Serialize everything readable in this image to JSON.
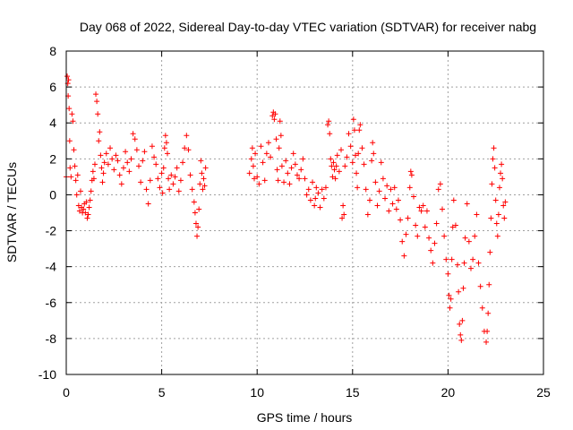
{
  "chart_data": {
    "type": "scatter",
    "title": "Day 068 of 2022, Sidereal Day-to-day VTEC variation (SDTVAR) for receiver nabg",
    "xlabel": "GPS time / hours",
    "ylabel": "SDTVAR / TECUs",
    "xlim": [
      0,
      25
    ],
    "ylim": [
      -10,
      8
    ],
    "xticks": [
      0,
      5,
      10,
      15,
      20,
      25
    ],
    "yticks": [
      -10,
      -8,
      -6,
      -4,
      -2,
      0,
      2,
      4,
      6,
      8
    ],
    "grid": true,
    "marker": "+",
    "series": [
      {
        "name": "SDTVAR",
        "color": "#ff0000",
        "points": [
          [
            0.0,
            1.0
          ],
          [
            0.05,
            6.6
          ],
          [
            0.08,
            6.2
          ],
          [
            0.1,
            5.5
          ],
          [
            0.12,
            6.4
          ],
          [
            0.15,
            4.8
          ],
          [
            0.18,
            3.0
          ],
          [
            0.2,
            1.5
          ],
          [
            0.25,
            1.0
          ],
          [
            0.3,
            4.5
          ],
          [
            0.35,
            4.1
          ],
          [
            0.4,
            2.5
          ],
          [
            0.45,
            1.6
          ],
          [
            0.5,
            0.8
          ],
          [
            0.55,
            0.0
          ],
          [
            0.6,
            1.1
          ],
          [
            0.65,
            -0.6
          ],
          [
            0.7,
            -0.9
          ],
          [
            0.75,
            0.2
          ],
          [
            0.8,
            -0.7
          ],
          [
            0.85,
            -1.0
          ],
          [
            0.9,
            -0.8
          ],
          [
            0.95,
            -0.5
          ],
          [
            1.0,
            -1.0
          ],
          [
            1.05,
            -0.4
          ],
          [
            1.1,
            -1.3
          ],
          [
            1.15,
            -1.1
          ],
          [
            1.2,
            -0.7
          ],
          [
            1.25,
            -0.3
          ],
          [
            1.3,
            0.2
          ],
          [
            1.35,
            0.8
          ],
          [
            1.4,
            1.3
          ],
          [
            1.45,
            0.9
          ],
          [
            1.5,
            1.7
          ],
          [
            1.55,
            5.6
          ],
          [
            1.6,
            5.2
          ],
          [
            1.65,
            4.5
          ],
          [
            1.7,
            3.0
          ],
          [
            1.75,
            3.5
          ],
          [
            1.8,
            2.2
          ],
          [
            1.85,
            1.5
          ],
          [
            1.9,
            0.7
          ],
          [
            1.95,
            1.2
          ],
          [
            2.0,
            1.8
          ],
          [
            2.1,
            2.3
          ],
          [
            2.2,
            1.7
          ],
          [
            2.3,
            2.6
          ],
          [
            2.4,
            2.0
          ],
          [
            2.5,
            1.4
          ],
          [
            2.6,
            2.2
          ],
          [
            2.7,
            1.9
          ],
          [
            2.8,
            1.1
          ],
          [
            2.9,
            0.6
          ],
          [
            3.0,
            1.5
          ],
          [
            3.1,
            2.4
          ],
          [
            3.2,
            1.8
          ],
          [
            3.3,
            1.3
          ],
          [
            3.4,
            2.0
          ],
          [
            3.5,
            3.4
          ],
          [
            3.6,
            3.1
          ],
          [
            3.7,
            2.5
          ],
          [
            3.8,
            1.6
          ],
          [
            3.9,
            0.7
          ],
          [
            4.0,
            1.9
          ],
          [
            4.1,
            2.4
          ],
          [
            4.2,
            0.3
          ],
          [
            4.3,
            -0.5
          ],
          [
            4.4,
            0.8
          ],
          [
            4.5,
            2.7
          ],
          [
            4.6,
            2.1
          ],
          [
            4.7,
            1.7
          ],
          [
            4.8,
            0.9
          ],
          [
            4.9,
            0.4
          ],
          [
            5.0,
            1.2
          ],
          [
            5.05,
            0.1
          ],
          [
            5.1,
            1.5
          ],
          [
            5.15,
            2.6
          ],
          [
            5.2,
            3.3
          ],
          [
            5.25,
            2.9
          ],
          [
            5.3,
            2.3
          ],
          [
            5.35,
            0.9
          ],
          [
            5.4,
            0.3
          ],
          [
            5.5,
            1.1
          ],
          [
            5.6,
            0.6
          ],
          [
            5.7,
            1.0
          ],
          [
            5.8,
            1.5
          ],
          [
            5.9,
            0.2
          ],
          [
            6.0,
            0.8
          ],
          [
            6.1,
            1.8
          ],
          [
            6.2,
            2.6
          ],
          [
            6.3,
            3.3
          ],
          [
            6.4,
            2.5
          ],
          [
            6.5,
            1.1
          ],
          [
            6.6,
            0.3
          ],
          [
            6.7,
            -0.4
          ],
          [
            6.75,
            -1.0
          ],
          [
            6.8,
            -1.6
          ],
          [
            6.85,
            -2.3
          ],
          [
            6.9,
            -1.8
          ],
          [
            6.95,
            -0.8
          ],
          [
            7.0,
            0.6
          ],
          [
            7.05,
            1.9
          ],
          [
            7.1,
            1.2
          ],
          [
            7.15,
            0.3
          ],
          [
            7.2,
            0.9
          ],
          [
            7.25,
            0.5
          ],
          [
            7.3,
            1.5
          ],
          [
            9.6,
            1.2
          ],
          [
            9.7,
            2.0
          ],
          [
            9.75,
            2.6
          ],
          [
            9.8,
            1.6
          ],
          [
            9.85,
            0.9
          ],
          [
            9.9,
            2.3
          ],
          [
            10.0,
            1.0
          ],
          [
            10.1,
            0.6
          ],
          [
            10.2,
            2.7
          ],
          [
            10.3,
            1.8
          ],
          [
            10.4,
            0.8
          ],
          [
            10.5,
            2.3
          ],
          [
            10.6,
            2.9
          ],
          [
            10.7,
            2.1
          ],
          [
            10.8,
            4.4
          ],
          [
            10.85,
            4.6
          ],
          [
            10.9,
            4.2
          ],
          [
            10.95,
            4.5
          ],
          [
            11.0,
            3.1
          ],
          [
            11.05,
            1.4
          ],
          [
            11.1,
            0.8
          ],
          [
            11.15,
            2.6
          ],
          [
            11.2,
            4.1
          ],
          [
            11.25,
            3.3
          ],
          [
            11.3,
            1.6
          ],
          [
            11.4,
            0.7
          ],
          [
            11.5,
            1.9
          ],
          [
            11.6,
            1.2
          ],
          [
            11.7,
            0.6
          ],
          [
            11.8,
            1.5
          ],
          [
            11.9,
            2.3
          ],
          [
            12.0,
            1.7
          ],
          [
            12.1,
            1.1
          ],
          [
            12.2,
            0.9
          ],
          [
            12.3,
            1.4
          ],
          [
            12.4,
            2.0
          ],
          [
            12.5,
            0.9
          ],
          [
            12.6,
            0.0
          ],
          [
            12.7,
            0.3
          ],
          [
            12.8,
            -0.3
          ],
          [
            12.9,
            0.7
          ],
          [
            13.0,
            -0.6
          ],
          [
            13.05,
            -0.2
          ],
          [
            13.1,
            0.4
          ],
          [
            13.2,
            0.1
          ],
          [
            13.3,
            -0.7
          ],
          [
            13.4,
            0.3
          ],
          [
            13.5,
            -0.2
          ],
          [
            13.6,
            0.4
          ],
          [
            13.7,
            3.9
          ],
          [
            13.75,
            4.1
          ],
          [
            13.8,
            3.4
          ],
          [
            13.85,
            2.0
          ],
          [
            13.9,
            1.6
          ],
          [
            13.95,
            1.0
          ],
          [
            14.0,
            1.8
          ],
          [
            14.05,
            1.4
          ],
          [
            14.1,
            0.9
          ],
          [
            14.15,
            1.6
          ],
          [
            14.2,
            2.2
          ],
          [
            14.3,
            1.3
          ],
          [
            14.4,
            2.5
          ],
          [
            14.45,
            -1.3
          ],
          [
            14.5,
            -0.6
          ],
          [
            14.55,
            -1.1
          ],
          [
            14.6,
            1.6
          ],
          [
            14.7,
            2.1
          ],
          [
            14.8,
            3.4
          ],
          [
            14.9,
            2.7
          ],
          [
            15.0,
            1.8
          ],
          [
            15.05,
            4.2
          ],
          [
            15.1,
            3.6
          ],
          [
            15.15,
            2.2
          ],
          [
            15.2,
            1.2
          ],
          [
            15.25,
            0.4
          ],
          [
            15.3,
            2.3
          ],
          [
            15.35,
            3.6
          ],
          [
            15.4,
            3.9
          ],
          [
            15.5,
            2.6
          ],
          [
            15.6,
            1.7
          ],
          [
            15.7,
            0.3
          ],
          [
            15.8,
            -1.1
          ],
          [
            15.9,
            -0.3
          ],
          [
            16.0,
            1.9
          ],
          [
            16.05,
            2.9
          ],
          [
            16.1,
            2.3
          ],
          [
            16.2,
            0.7
          ],
          [
            16.3,
            -0.6
          ],
          [
            16.4,
            0.2
          ],
          [
            16.5,
            1.8
          ],
          [
            16.6,
            0.9
          ],
          [
            16.7,
            -0.2
          ],
          [
            16.8,
            0.5
          ],
          [
            16.9,
            -0.9
          ],
          [
            17.0,
            0.3
          ],
          [
            17.1,
            -0.5
          ],
          [
            17.2,
            0.4
          ],
          [
            17.3,
            -0.8
          ],
          [
            17.4,
            -0.3
          ],
          [
            17.5,
            -1.4
          ],
          [
            17.6,
            -2.6
          ],
          [
            17.7,
            -3.4
          ],
          [
            17.8,
            -2.2
          ],
          [
            17.9,
            -1.3
          ],
          [
            18.0,
            0.4
          ],
          [
            18.05,
            1.3
          ],
          [
            18.1,
            1.1
          ],
          [
            18.2,
            -0.1
          ],
          [
            18.3,
            -1.7
          ],
          [
            18.4,
            -2.3
          ],
          [
            18.5,
            -0.7
          ],
          [
            18.6,
            -0.9
          ],
          [
            18.7,
            -0.6
          ],
          [
            18.8,
            -1.8
          ],
          [
            18.9,
            -0.9
          ],
          [
            19.0,
            -2.4
          ],
          [
            19.1,
            -3.1
          ],
          [
            19.2,
            -3.8
          ],
          [
            19.3,
            -2.7
          ],
          [
            19.4,
            -1.6
          ],
          [
            19.5,
            0.3
          ],
          [
            19.6,
            0.6
          ],
          [
            19.7,
            -0.8
          ],
          [
            19.8,
            -2.3
          ],
          [
            19.9,
            -3.6
          ],
          [
            20.0,
            -4.4
          ],
          [
            20.05,
            -5.6
          ],
          [
            20.1,
            -6.3
          ],
          [
            20.15,
            -5.8
          ],
          [
            20.2,
            -3.6
          ],
          [
            20.25,
            -1.8
          ],
          [
            20.3,
            -0.3
          ],
          [
            20.4,
            -1.7
          ],
          [
            20.5,
            -3.9
          ],
          [
            20.55,
            -5.4
          ],
          [
            20.6,
            -7.2
          ],
          [
            20.65,
            -7.8
          ],
          [
            20.7,
            -8.1
          ],
          [
            20.75,
            -7.0
          ],
          [
            20.8,
            -5.2
          ],
          [
            20.85,
            -3.8
          ],
          [
            20.9,
            -2.4
          ],
          [
            21.0,
            -0.5
          ],
          [
            21.1,
            -2.6
          ],
          [
            21.2,
            -4.1
          ],
          [
            21.3,
            -3.6
          ],
          [
            21.4,
            -2.3
          ],
          [
            21.5,
            -1.1
          ],
          [
            21.6,
            -3.8
          ],
          [
            21.7,
            -5.1
          ],
          [
            21.8,
            -6.3
          ],
          [
            21.9,
            -7.6
          ],
          [
            22.0,
            -8.2
          ],
          [
            22.05,
            -7.6
          ],
          [
            22.1,
            -6.6
          ],
          [
            22.15,
            -5.0
          ],
          [
            22.2,
            -3.2
          ],
          [
            22.25,
            -1.3
          ],
          [
            22.3,
            0.6
          ],
          [
            22.35,
            2.0
          ],
          [
            22.4,
            2.6
          ],
          [
            22.45,
            1.5
          ],
          [
            22.5,
            -0.3
          ],
          [
            22.55,
            -1.6
          ],
          [
            22.6,
            -2.3
          ],
          [
            22.65,
            -1.1
          ],
          [
            22.7,
            0.4
          ],
          [
            22.75,
            1.2
          ],
          [
            22.8,
            1.7
          ],
          [
            22.85,
            0.9
          ],
          [
            22.9,
            -0.6
          ],
          [
            22.95,
            -1.3
          ],
          [
            23.0,
            -0.4
          ]
        ]
      }
    ]
  }
}
